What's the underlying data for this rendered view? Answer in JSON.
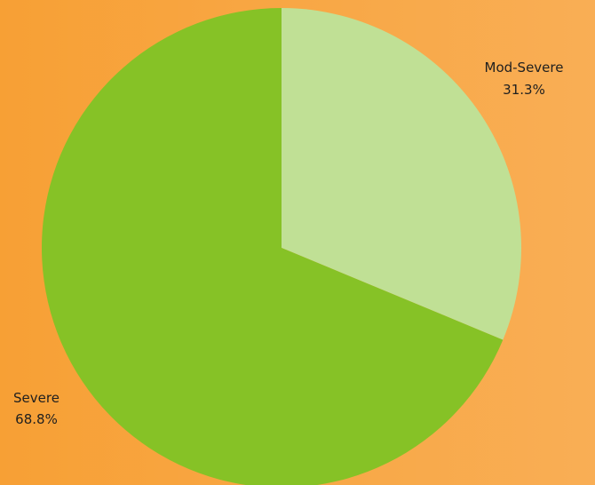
{
  "chart_data": {
    "type": "pie",
    "title": "",
    "slices": [
      {
        "label": "Mod-Severe",
        "value": 31.3,
        "value_label": "31.3%",
        "color": "#c0e095"
      },
      {
        "label": "Severe",
        "value": 68.8,
        "value_label": "68.8%",
        "color": "#86c226"
      }
    ],
    "start_angle": "12 o'clock",
    "direction": "clockwise",
    "background": "#f7a035"
  }
}
